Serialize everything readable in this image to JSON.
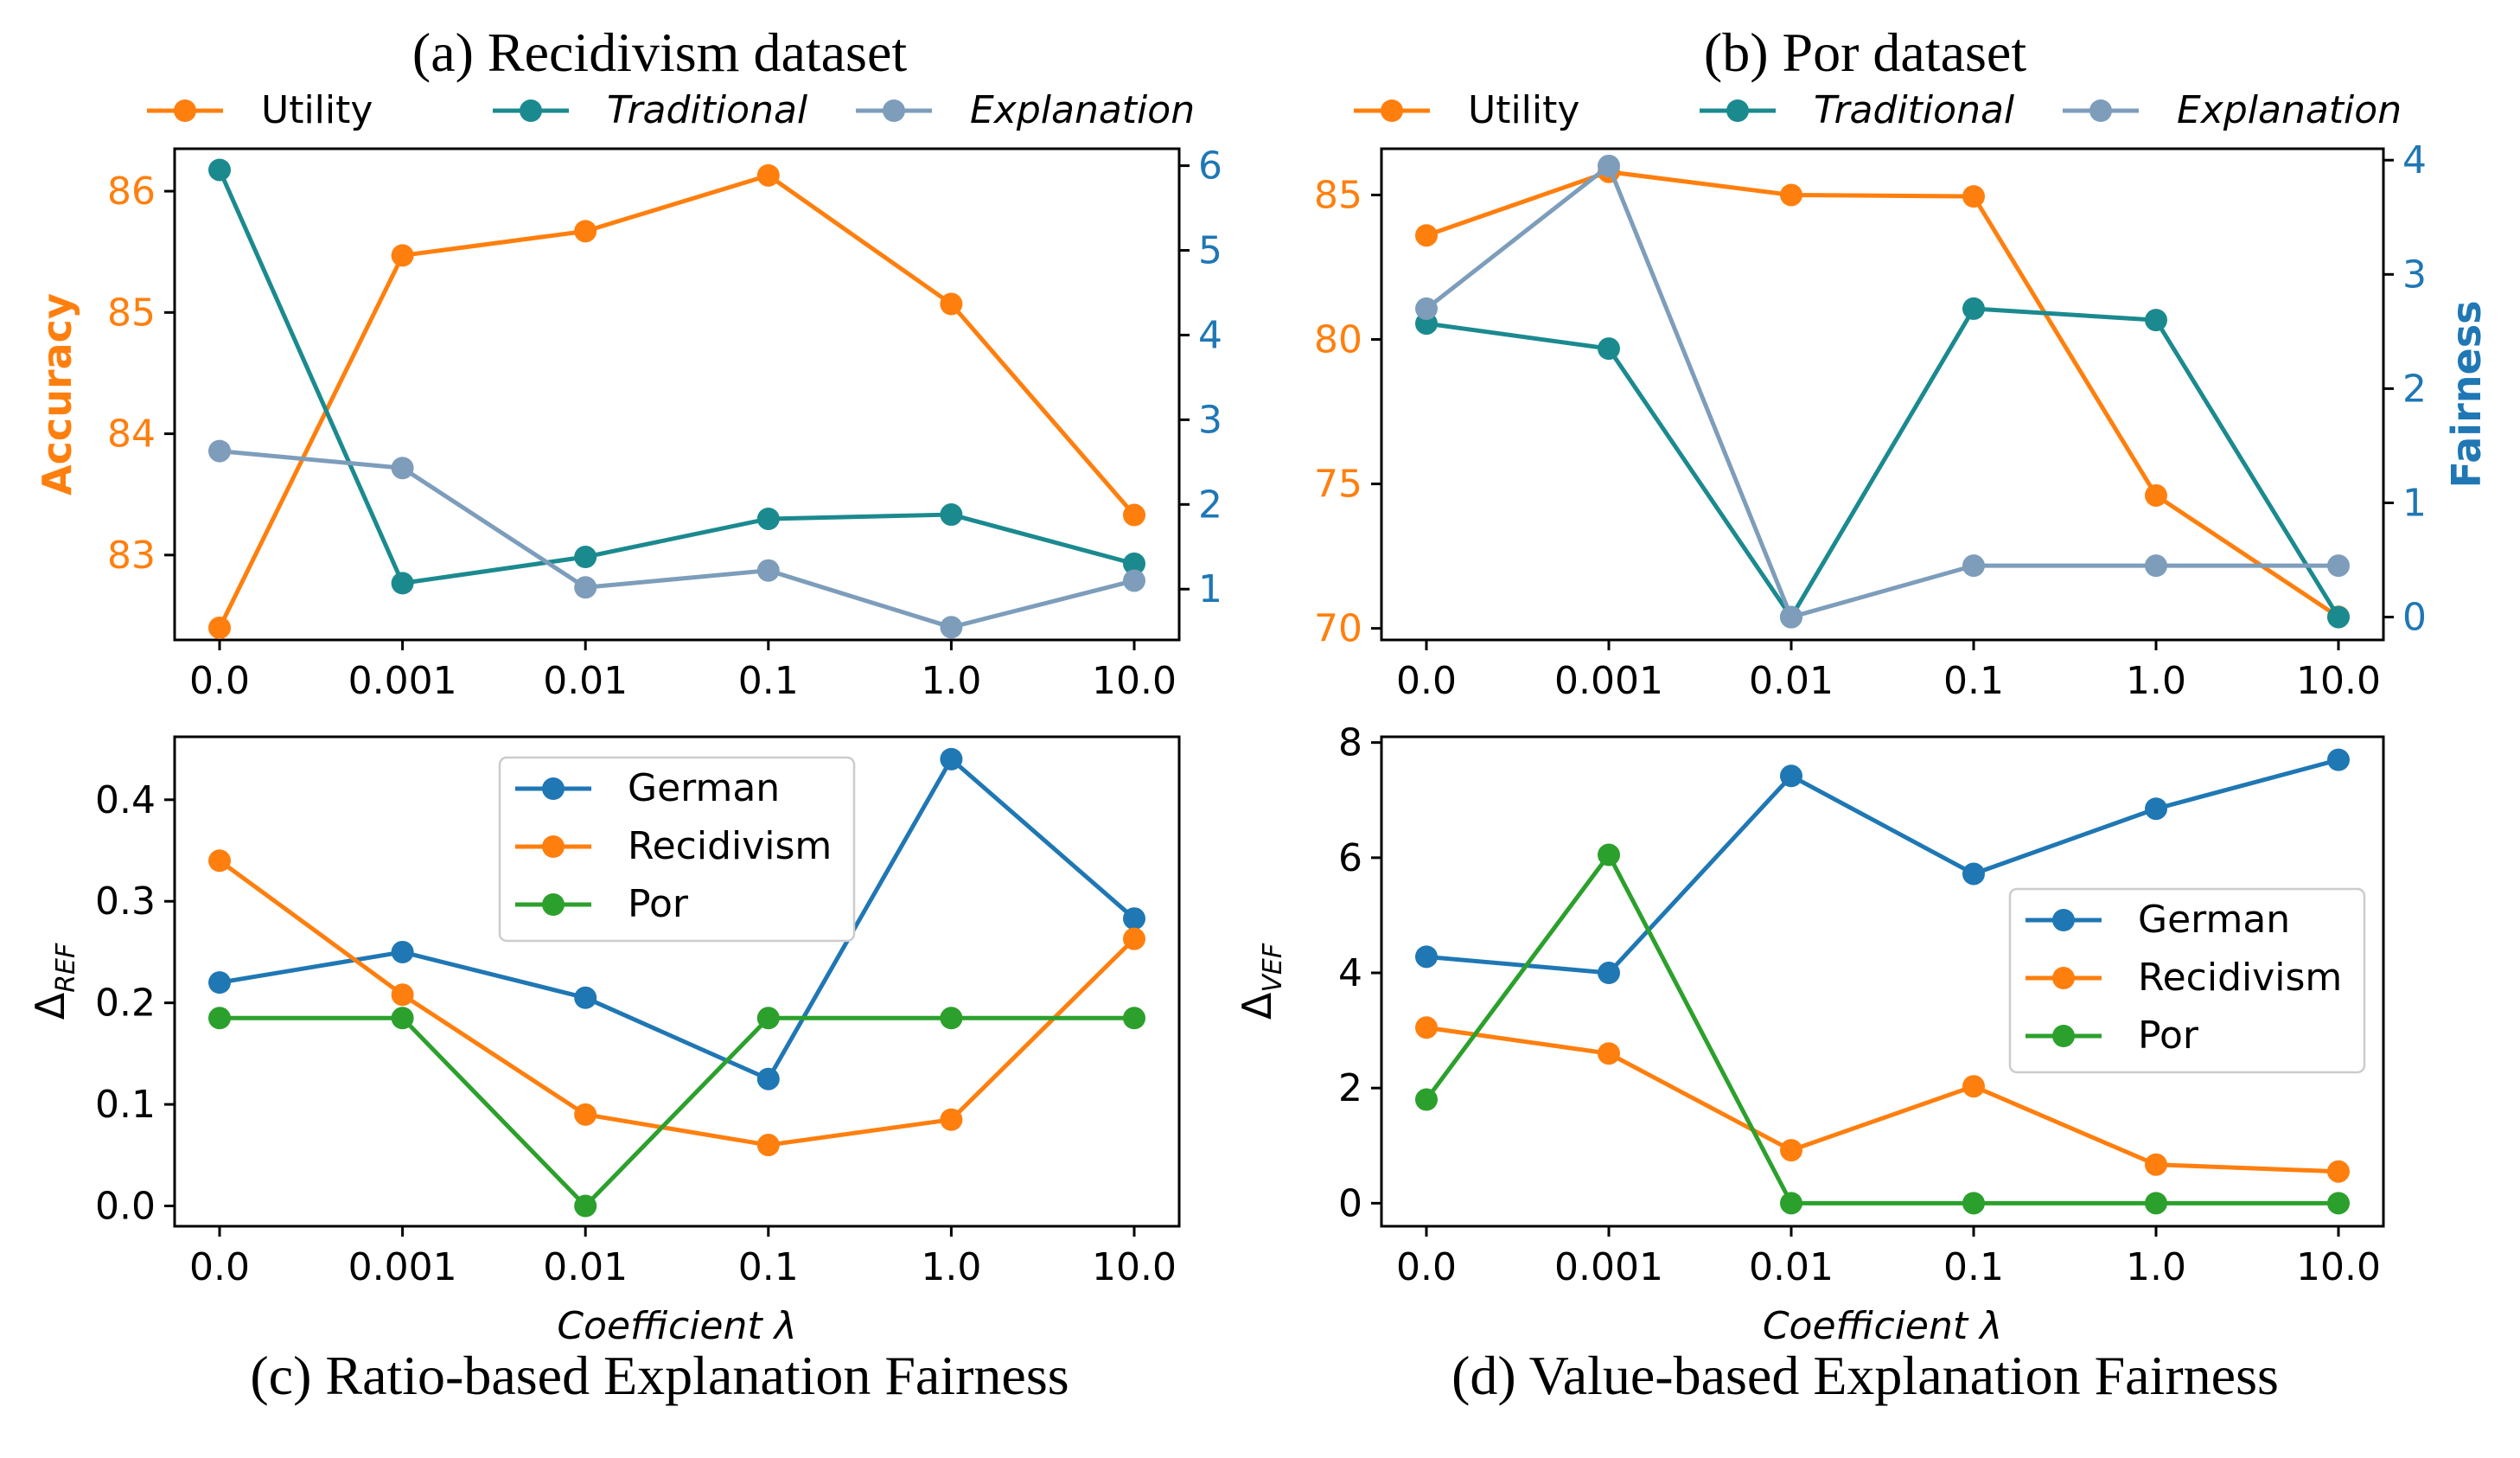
{
  "chart_data": [
    {
      "id": "a",
      "type": "line",
      "title": "(a) Recidivism dataset",
      "xlabel": "",
      "ylabel": "Accuracy",
      "y2label": "",
      "categories": [
        "0.0",
        "0.001",
        "0.01",
        "0.1",
        "1.0",
        "10.0"
      ],
      "ylim": [
        82.3,
        86.35
      ],
      "y2lim": [
        0.4,
        6.2
      ],
      "yticks": [
        "83",
        "84",
        "85",
        "86"
      ],
      "y2ticks": [
        "1",
        "2",
        "3",
        "4",
        "5",
        "6"
      ],
      "legend_position": "top-outside",
      "series": [
        {
          "name": "Utility",
          "axis": "left",
          "color": "#ff7f0e",
          "values": [
            82.4,
            85.47,
            85.67,
            86.13,
            85.07,
            83.33
          ]
        },
        {
          "name": "Traditional",
          "axis": "right",
          "color": "#1b8a8f",
          "values": [
            5.95,
            1.07,
            1.38,
            1.83,
            1.88,
            1.3
          ]
        },
        {
          "name": "Explanation",
          "axis": "right",
          "color": "#7d9dbb",
          "values": [
            2.63,
            2.43,
            1.02,
            1.22,
            0.55,
            1.1
          ]
        }
      ]
    },
    {
      "id": "b",
      "type": "line",
      "title": "(b) Por dataset",
      "xlabel": "",
      "ylabel": "",
      "y2label": "Fairness",
      "categories": [
        "0.0",
        "0.001",
        "0.01",
        "0.1",
        "1.0",
        "10.0"
      ],
      "ylim": [
        69.6,
        86.6
      ],
      "y2lim": [
        -0.2,
        4.1
      ],
      "yticks": [
        "70",
        "75",
        "80",
        "85"
      ],
      "y2ticks": [
        "0",
        "1",
        "2",
        "3",
        "4"
      ],
      "legend_position": "top-outside",
      "series": [
        {
          "name": "Utility",
          "axis": "left",
          "color": "#ff7f0e",
          "values": [
            83.6,
            85.8,
            85.0,
            84.95,
            74.6,
            70.4
          ]
        },
        {
          "name": "Traditional",
          "axis": "right",
          "color": "#1b8a8f",
          "values": [
            2.57,
            2.35,
            0.0,
            2.7,
            2.6,
            0.0
          ]
        },
        {
          "name": "Explanation",
          "axis": "right",
          "color": "#7d9dbb",
          "values": [
            2.7,
            3.95,
            0.0,
            0.45,
            0.45,
            0.45
          ]
        }
      ]
    },
    {
      "id": "c",
      "type": "line",
      "title": "(c) Ratio-based Explanation Fairness",
      "xlabel": "Coefficient λ",
      "ylabel": "Δ",
      "ylabel_sub": "REF",
      "categories": [
        "0.0",
        "0.001",
        "0.01",
        "0.1",
        "1.0",
        "10.0"
      ],
      "ylim": [
        -0.02,
        0.462
      ],
      "yticks": [
        "0.0",
        "0.1",
        "0.2",
        "0.3",
        "0.4"
      ],
      "legend_position": "upper-center",
      "series": [
        {
          "name": "German",
          "color": "#1f77b4",
          "values": [
            0.22,
            0.25,
            0.205,
            0.125,
            0.44,
            0.283
          ]
        },
        {
          "name": "Recidivism",
          "color": "#ff7f0e",
          "values": [
            0.34,
            0.208,
            0.09,
            0.06,
            0.085,
            0.263
          ]
        },
        {
          "name": "Por",
          "color": "#2ca02c",
          "values": [
            0.185,
            0.185,
            0.0,
            0.185,
            0.185,
            0.185
          ]
        }
      ]
    },
    {
      "id": "d",
      "type": "line",
      "title": "(d) Value-based Explanation Fairness",
      "xlabel": "Coefficient λ",
      "ylabel": "Δ",
      "ylabel_sub": "VEF",
      "categories": [
        "0.0",
        "0.001",
        "0.01",
        "0.1",
        "1.0",
        "10.0"
      ],
      "ylim": [
        -0.4,
        8.1
      ],
      "yticks": [
        "0",
        "2",
        "4",
        "6",
        "8"
      ],
      "legend_position": "center-right",
      "series": [
        {
          "name": "German",
          "color": "#1f77b4",
          "values": [
            4.28,
            4.0,
            7.42,
            5.72,
            6.85,
            7.7
          ]
        },
        {
          "name": "Recidivism",
          "color": "#ff7f0e",
          "values": [
            3.05,
            2.6,
            0.92,
            2.03,
            0.67,
            0.55
          ]
        },
        {
          "name": "Por",
          "color": "#2ca02c",
          "values": [
            1.8,
            6.05,
            0.0,
            0.0,
            0.0,
            0.0
          ]
        }
      ]
    }
  ]
}
